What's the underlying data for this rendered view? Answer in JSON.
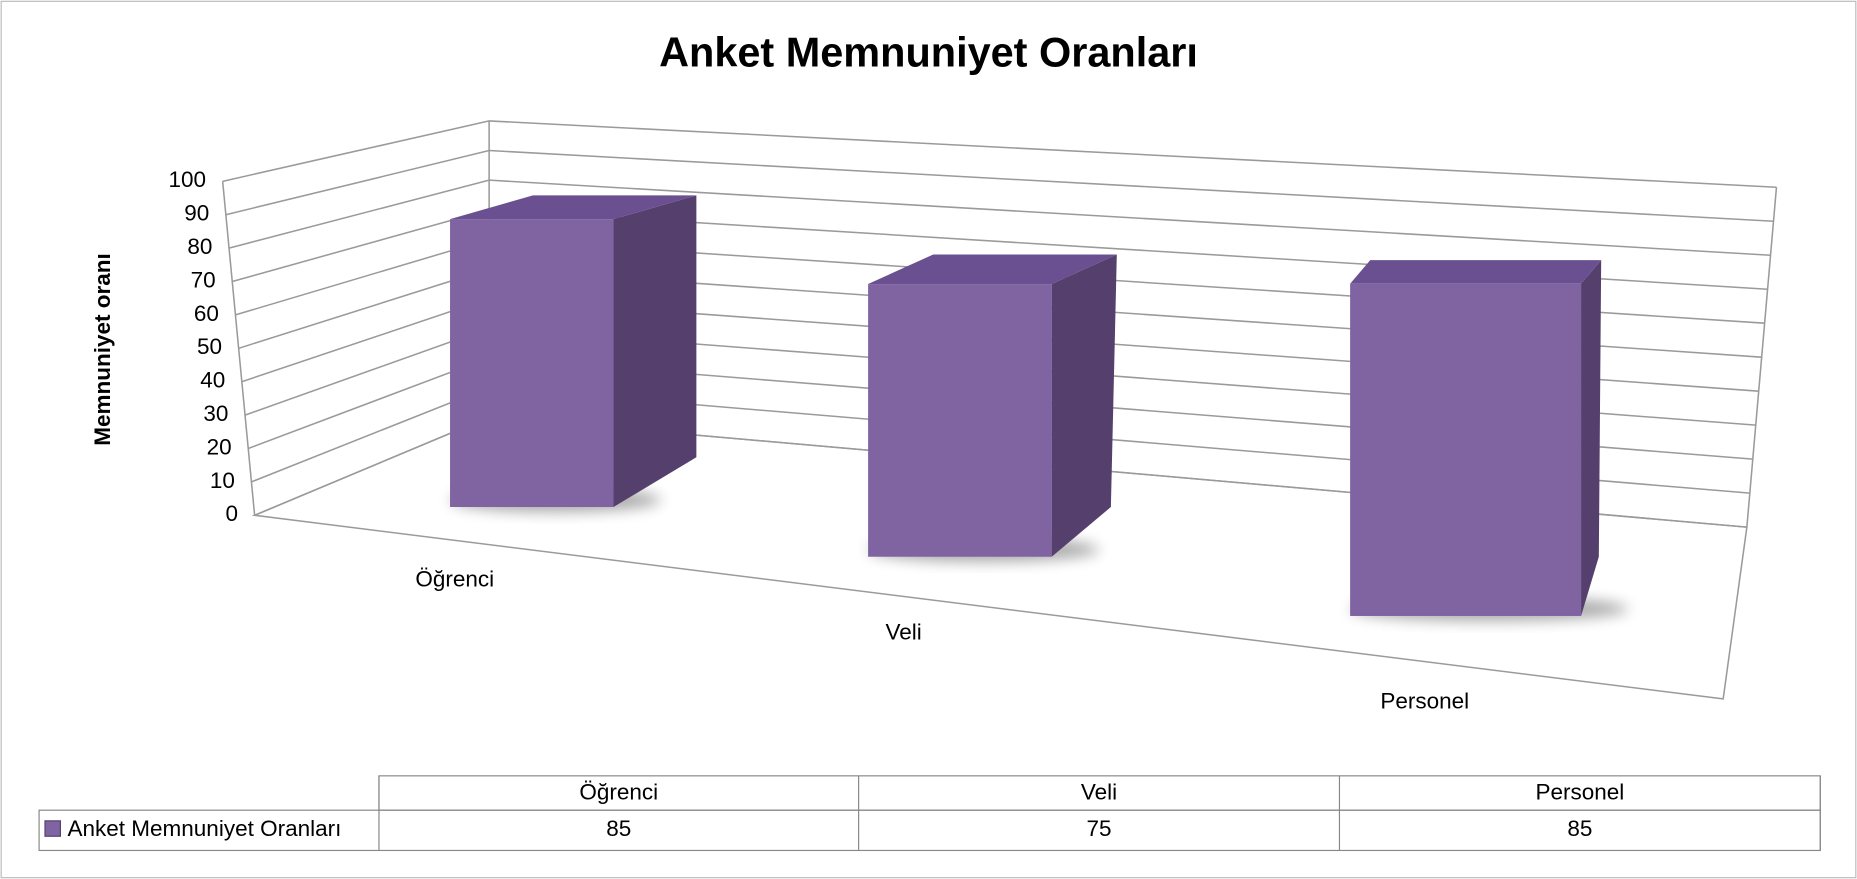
{
  "chart_data": {
    "type": "bar3d",
    "title": "Anket Memnuniyet Oranları",
    "y_label": "Memnuniyet oranı",
    "categories": [
      "Öğrenci",
      "Veli",
      "Personel"
    ],
    "series": [
      {
        "name": "Anket Memnuniyet Oranları",
        "color": "#8064a2",
        "values": [
          85,
          75,
          85
        ]
      }
    ],
    "ylim": [
      0,
      100
    ],
    "yticks": [
      0,
      10,
      20,
      30,
      40,
      50,
      60,
      70,
      80,
      90,
      100
    ],
    "grid": true,
    "data_table": true
  }
}
